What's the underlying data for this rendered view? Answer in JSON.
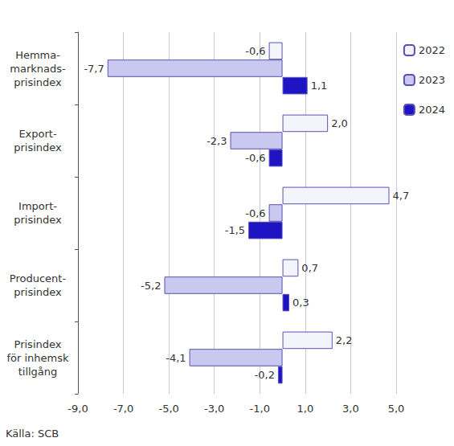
{
  "chart_data": {
    "type": "bar",
    "orientation": "horizontal",
    "categories": [
      "Hemma-\nmarknads-\nprisindex",
      "Export-\nprisindex",
      "Import-\nprisindex",
      "Producent-\nprisindex",
      "Prisindex\nför inhemsk\ntillgång"
    ],
    "series": [
      {
        "name": "2022",
        "color": "#f4f4fc",
        "values": [
          -0.6,
          2.0,
          4.7,
          0.7,
          2.2
        ],
        "value_labels": [
          "-0,6",
          "2,0",
          "4,7",
          "0,7",
          "2,2"
        ]
      },
      {
        "name": "2023",
        "color": "#c9c9ef",
        "values": [
          -7.7,
          -2.3,
          -0.6,
          -5.2,
          -4.1
        ],
        "value_labels": [
          "-7,7",
          "-2,3",
          "-0,6",
          "-5,2",
          "-4,1"
        ]
      },
      {
        "name": "2024",
        "color": "#1f14c3",
        "values": [
          1.1,
          -0.6,
          -1.5,
          0.3,
          -0.2
        ],
        "value_labels": [
          "1,1",
          "-0,6",
          "-1,5",
          "0,3",
          "-0,2"
        ]
      }
    ],
    "xlim": [
      -9,
      5
    ],
    "xticks": [
      {
        "value": -9,
        "label": "-9,0"
      },
      {
        "value": -7,
        "label": "-7,0"
      },
      {
        "value": -5,
        "label": "-5,0"
      },
      {
        "value": -3,
        "label": "-3,0"
      },
      {
        "value": -1,
        "label": "-1,0"
      },
      {
        "value": 1,
        "label": "1,0"
      },
      {
        "value": 3,
        "label": "3,0"
      },
      {
        "value": 5,
        "label": "5,0"
      }
    ],
    "grid": true,
    "legend": "top-right",
    "data_labels": true,
    "source": "Källa: SCB"
  }
}
